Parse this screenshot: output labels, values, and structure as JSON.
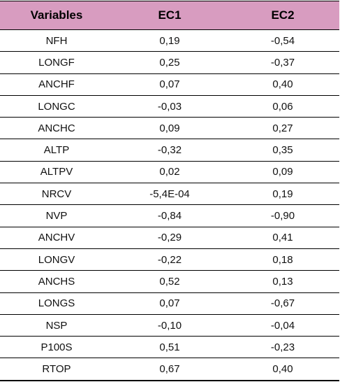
{
  "table": {
    "headers": [
      "Variables",
      "EC1",
      "EC2"
    ],
    "rows": [
      [
        "NFH",
        "0,19",
        "-0,54"
      ],
      [
        "LONGF",
        "0,25",
        "-0,37"
      ],
      [
        "ANCHF",
        "0,07",
        "0,40"
      ],
      [
        "LONGC",
        "-0,03",
        "0,06"
      ],
      [
        "ANCHC",
        "0,09",
        "0,27"
      ],
      [
        "ALTP",
        "-0,32",
        "0,35"
      ],
      [
        "ALTPV",
        "0,02",
        "0,09"
      ],
      [
        "NRCV",
        "-5,4E-04",
        "0,19"
      ],
      [
        "NVP",
        "-0,84",
        "-0,90"
      ],
      [
        "ANCHV",
        "-0,29",
        "0,41"
      ],
      [
        "LONGV",
        "-0,22",
        "0,18"
      ],
      [
        "ANCHS",
        "0,52",
        "0,13"
      ],
      [
        "LONGS",
        "0,07",
        "-0,67"
      ],
      [
        "NSP",
        "-0,10",
        "-0,04"
      ],
      [
        "P100S",
        "0,51",
        "-0,23"
      ],
      [
        "RTOP",
        "0,67",
        "0,40"
      ]
    ]
  },
  "colors": {
    "header_background": "#d89cc0",
    "rule": "#000000"
  }
}
